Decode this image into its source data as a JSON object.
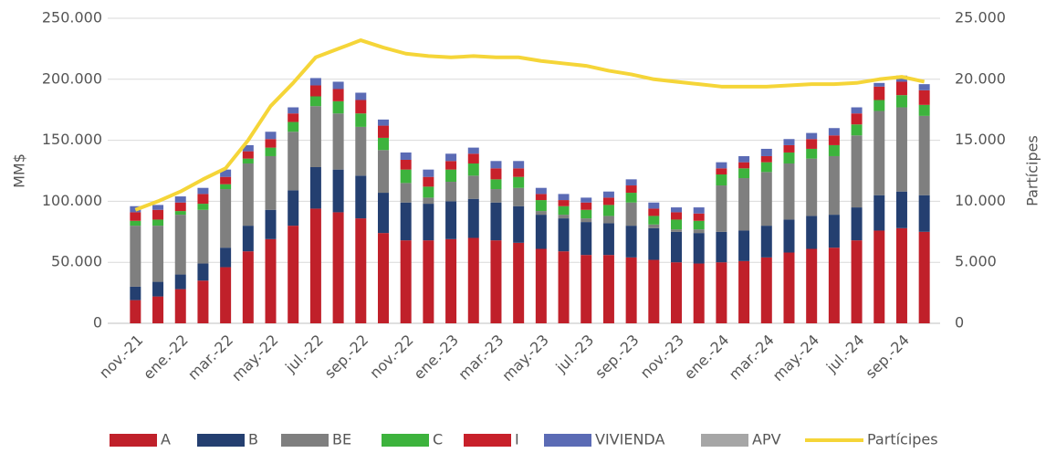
{
  "chart_data": {
    "type": "stacked_bar_line",
    "y_label": "MM$",
    "y2_label": "Partícipes",
    "categories": [
      "nov.-21",
      null,
      "ene.-22",
      null,
      "mar.-22",
      null,
      "may.-22",
      null,
      "jul.-22",
      null,
      "sep.-22",
      null,
      "nov.-22",
      null,
      "ene.-23",
      null,
      "mar.-23",
      null,
      "may.-23",
      null,
      "jul.-23",
      null,
      "sep.-23",
      null,
      "nov.-23",
      null,
      "ene.-24",
      null,
      "mar.-24",
      null,
      "may.-24",
      null,
      "jul.-24",
      null,
      "sep.-24",
      null
    ],
    "ylim": [
      0,
      250000
    ],
    "yticks": [
      0,
      {
        "value": 50000,
        "label": "50.000"
      },
      {
        "value": 100000,
        "label": "100.000"
      },
      {
        "value": 150000,
        "label": "150.000"
      },
      {
        "value": 200000,
        "label": "200.000"
      },
      {
        "value": 250000,
        "label": "250.000"
      }
    ],
    "y2lim": [
      0,
      25000
    ],
    "y2ticks": [
      0,
      {
        "value": 5000,
        "label": "5.000"
      },
      {
        "value": 10000,
        "label": "10.000"
      },
      {
        "value": 15000,
        "label": "15.000"
      },
      {
        "value": 20000,
        "label": "20.000"
      },
      {
        "value": 25000,
        "label": "25.000"
      }
    ],
    "grid": true,
    "series": [
      {
        "name": "A",
        "color": "#c0202a",
        "values": [
          19000,
          22000,
          28000,
          35000,
          46000,
          59000,
          69000,
          80000,
          94000,
          91000,
          86000,
          74000,
          68000,
          68000,
          69000,
          70000,
          68000,
          66000,
          61000,
          59000,
          56000,
          56000,
          54000,
          52000,
          50000,
          49000,
          50000,
          51000,
          54000,
          58000,
          61000,
          62000,
          68000,
          76000,
          78000,
          75000
        ]
      },
      {
        "name": "B",
        "color": "#243f70",
        "values": [
          11000,
          12000,
          12000,
          14000,
          16000,
          21000,
          24000,
          29000,
          34000,
          35000,
          35000,
          33000,
          31000,
          30000,
          31000,
          32000,
          31000,
          30000,
          28000,
          27000,
          27000,
          26000,
          26000,
          26000,
          25000,
          25000,
          25000,
          25000,
          26000,
          27000,
          27000,
          27000,
          27000,
          29000,
          30000,
          30000
        ]
      },
      {
        "name": "BE",
        "color": "#7f7f7f",
        "values": [
          50000,
          46000,
          49000,
          44000,
          48000,
          51000,
          44000,
          48000,
          50000,
          46000,
          40000,
          35000,
          16000,
          5000,
          16000,
          19000,
          11000,
          15000,
          3000,
          3000,
          3000,
          6000,
          19000,
          3000,
          2000,
          3000,
          38000,
          43000,
          44000,
          46000,
          47000,
          48000,
          59000,
          69000,
          69000,
          65000
        ]
      },
      {
        "name": "C",
        "color": "#3db33d",
        "values": [
          4000,
          5000,
          3000,
          5000,
          4000,
          4000,
          7000,
          8000,
          8000,
          10000,
          11000,
          10000,
          11000,
          9000,
          10000,
          10000,
          8000,
          9000,
          9000,
          7000,
          7000,
          9000,
          8000,
          7000,
          8000,
          7000,
          9000,
          8000,
          8000,
          9000,
          8000,
          9000,
          9000,
          9000,
          10000,
          9000
        ]
      },
      {
        "name": "I",
        "color": "#c8202a",
        "values": [
          7000,
          8000,
          7000,
          8000,
          6000,
          6000,
          7000,
          7000,
          9000,
          10000,
          11000,
          10000,
          8000,
          8000,
          7000,
          8000,
          9000,
          7000,
          5000,
          5000,
          6000,
          6000,
          6000,
          6000,
          6000,
          6000,
          5000,
          5000,
          5000,
          6000,
          8000,
          8000,
          9000,
          11000,
          11000,
          12000
        ]
      },
      {
        "name": "VIVIENDA",
        "color": "#5b6bb5",
        "values": [
          5000,
          4000,
          5000,
          5000,
          6000,
          5000,
          6000,
          5000,
          6000,
          6000,
          6000,
          5000,
          6000,
          6000,
          6000,
          5000,
          6000,
          6000,
          5000,
          5000,
          4000,
          5000,
          5000,
          5000,
          4000,
          5000,
          5000,
          5000,
          6000,
          5000,
          5000,
          6000,
          5000,
          3000,
          5000,
          5000
        ]
      },
      {
        "name": "APV",
        "color": "#a6a6a6",
        "values": [
          0,
          0,
          0,
          0,
          0,
          0,
          0,
          0,
          0,
          0,
          0,
          0,
          0,
          0,
          0,
          0,
          0,
          0,
          0,
          0,
          0,
          0,
          0,
          0,
          0,
          0,
          0,
          0,
          0,
          0,
          0,
          0,
          0,
          0,
          0,
          0
        ]
      },
      {
        "name": "Partícipes",
        "color": "#f5d538",
        "axis": "y2",
        "type": "line",
        "values": [
          9300,
          10000,
          10800,
          11800,
          12700,
          15000,
          17800,
          19700,
          21800,
          22500,
          23200,
          22600,
          22100,
          21900,
          21800,
          21900,
          21800,
          21800,
          21500,
          21300,
          21100,
          20700,
          20400,
          20000,
          19800,
          19600,
          19400,
          19400,
          19400,
          19500,
          19600,
          19600,
          19700,
          20000,
          20200,
          19800
        ]
      }
    ]
  }
}
